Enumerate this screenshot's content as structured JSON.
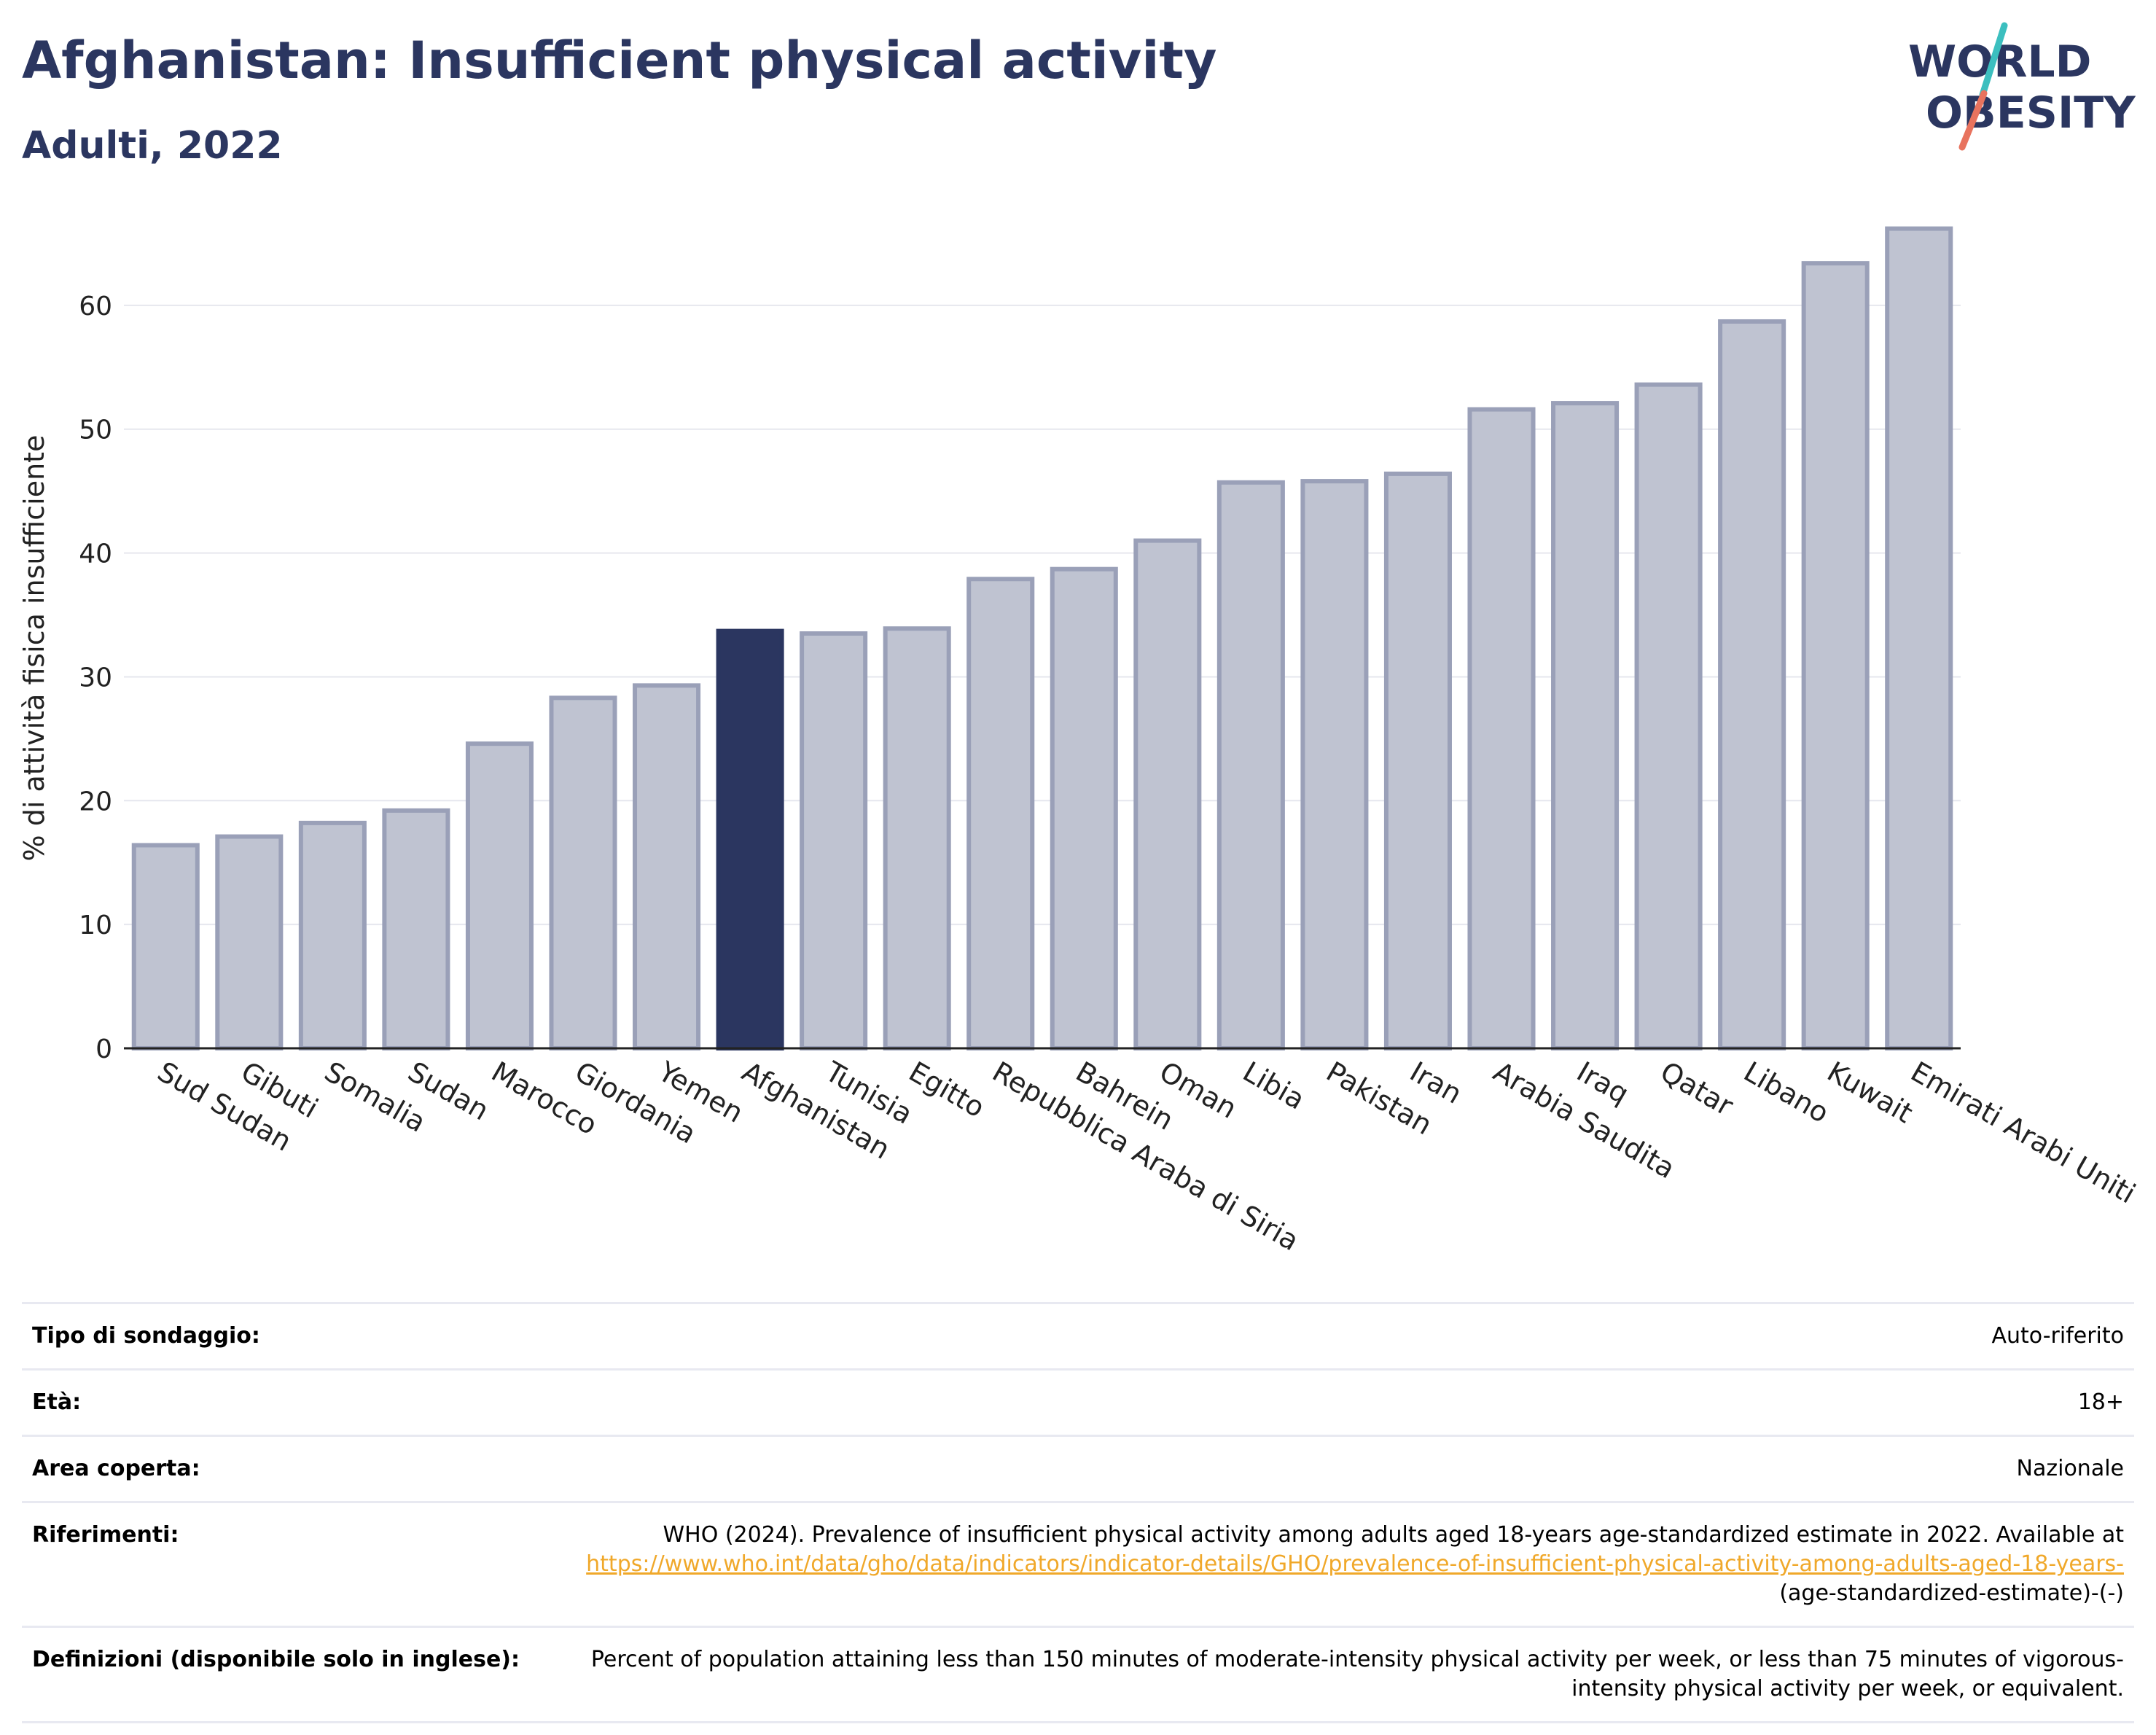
{
  "header": {
    "title": "Afghanistan: Insufficient physical activity",
    "subtitle": "Adulti, 2022",
    "logo_line1": "WORLD",
    "logo_line2": "OBESITY"
  },
  "colors": {
    "highlight_bar": "#2b3660",
    "other_bar": "#bfc3d1",
    "other_bar_border": "#9aa0b8",
    "title_text": "#2b3660",
    "link": "#f0a82a",
    "logo_slash_teal": "#3cbfbf",
    "logo_slash_coral": "#e8735e"
  },
  "chart_data": {
    "type": "bar",
    "ylabel": "% di attività fisica insufficiente",
    "xlabel": "",
    "ylim": [
      0,
      67
    ],
    "yticks": [
      0,
      10,
      20,
      30,
      40,
      50,
      60
    ],
    "grid": true,
    "highlight": "Afghanistan",
    "categories": [
      "Sud Sudan",
      "Gibuti",
      "Somalia",
      "Sudan",
      "Marocco",
      "Giordania",
      "Yemen",
      "Afghanistan",
      "Tunisia",
      "Egitto",
      "Repubblica Araba di Siria",
      "Bahrein",
      "Oman",
      "Libia",
      "Pakistan",
      "Iran",
      "Arabia Saudita",
      "Iraq",
      "Qatar",
      "Libano",
      "Kuwait",
      "Emirati Arabi Uniti"
    ],
    "values": [
      16.4,
      17.1,
      18.2,
      19.2,
      24.6,
      28.3,
      29.3,
      33.7,
      33.5,
      33.9,
      37.9,
      38.7,
      41.0,
      45.7,
      45.8,
      46.4,
      51.6,
      52.1,
      53.6,
      58.7,
      63.4,
      66.2
    ]
  },
  "info_table": [
    {
      "label": "Tipo di sondaggio:",
      "value": "Auto-riferito"
    },
    {
      "label": "Età:",
      "value": "18+"
    },
    {
      "label": "Area coperta:",
      "value": "Nazionale"
    },
    {
      "label": "Riferimenti:",
      "value": "WHO (2024). Prevalence of insufficient physical activity among adults aged 18-years age-standardized estimate in 2022. Available at",
      "link": "https://www.who.int/data/gho/data/indicators/indicator-details/GHO/prevalence-of-insufficient-physical-activity-among-adults-aged-18-years-",
      "suffix": "(age-standardized-estimate)-(-)"
    },
    {
      "label": "Definizioni (disponibile solo in inglese):",
      "value": "Percent of population attaining less than 150 minutes of moderate-intensity physical activity per week, or less than 75 minutes of vigorous-intensity physical activity per week, or equivalent."
    }
  ]
}
